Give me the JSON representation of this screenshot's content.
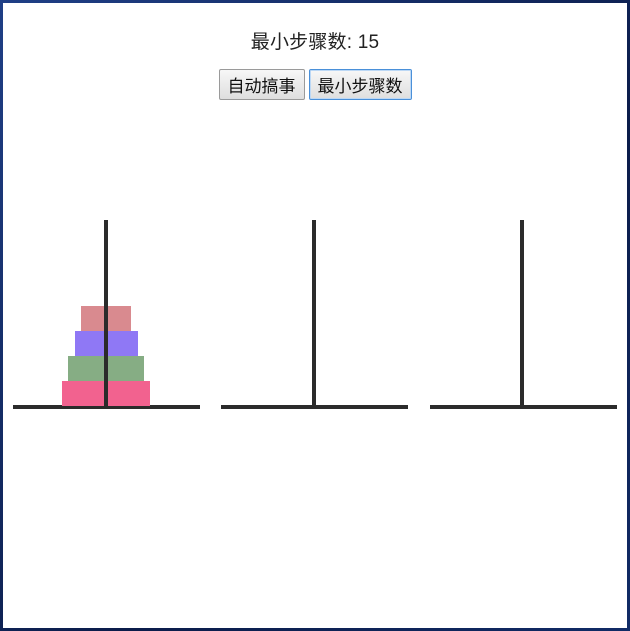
{
  "header": {
    "title": "最小步骤数: 15"
  },
  "buttons": {
    "auto_label": "自动搞事",
    "min_steps_label": "最小步骤数"
  },
  "game": {
    "disk_count": 4,
    "pegs": [
      {
        "name": "peg-1",
        "disks": [
          4,
          3,
          2,
          1
        ]
      },
      {
        "name": "peg-2",
        "disks": []
      },
      {
        "name": "peg-3",
        "disks": []
      }
    ],
    "disk_colors": {
      "1": "#d98a8f",
      "2": "#8f78f5",
      "3": "#86ad84",
      "4": "#f2628f"
    }
  }
}
